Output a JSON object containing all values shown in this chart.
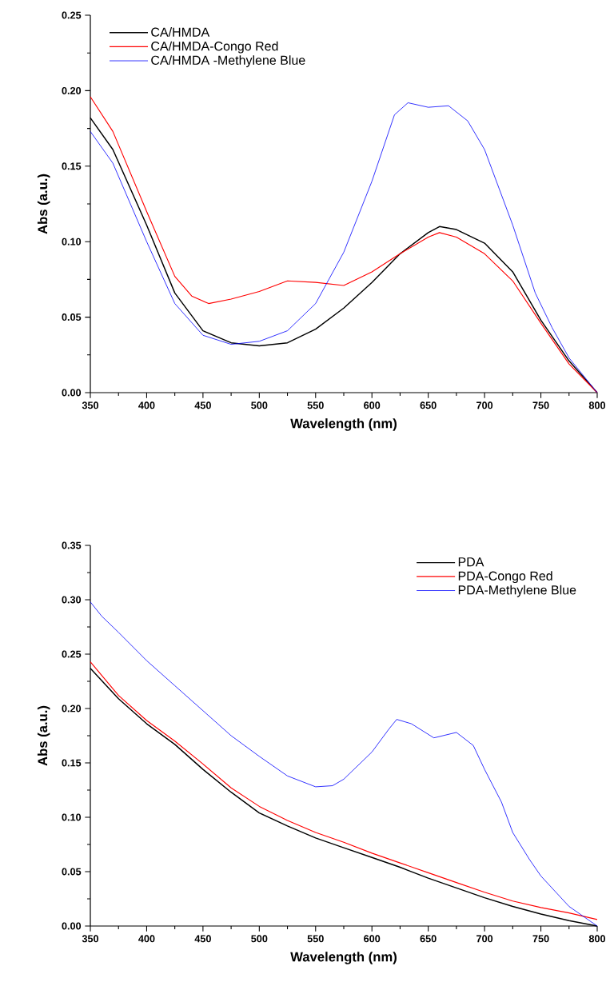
{
  "chart_data": [
    {
      "type": "line",
      "xlabel": "Wavelength (nm)",
      "ylabel": "Abs (a.u.)",
      "legend": "top left",
      "xlim": [
        350,
        800
      ],
      "ylim": [
        0,
        0.25
      ],
      "xticks": [
        350,
        400,
        450,
        500,
        550,
        600,
        650,
        700,
        750,
        800
      ],
      "yticks": [
        {
          "value": 0,
          "label": "0.00"
        },
        {
          "value": 0.05,
          "label": "0.05"
        },
        {
          "value": 0.1,
          "label": "0.10"
        },
        {
          "value": 0.15,
          "label": "0.15"
        },
        {
          "value": 0.2,
          "label": "0.20"
        },
        {
          "value": 0.25,
          "label": "0.25"
        }
      ],
      "series": [
        {
          "name": "CA/HMDA",
          "color": "#000000",
          "x": [
            350,
            370,
            400,
            425,
            450,
            475,
            500,
            525,
            550,
            575,
            600,
            625,
            650,
            660,
            675,
            700,
            725,
            750,
            775,
            800
          ],
          "values": [
            0.182,
            0.161,
            0.111,
            0.066,
            0.041,
            0.033,
            0.031,
            0.033,
            0.042,
            0.056,
            0.073,
            0.092,
            0.106,
            0.11,
            0.108,
            0.099,
            0.08,
            0.048,
            0.021,
            0
          ]
        },
        {
          "name": "CA/HMDA-Congo Red",
          "color": "#ff0000",
          "x": [
            350,
            370,
            400,
            425,
            440,
            455,
            475,
            500,
            525,
            550,
            575,
            600,
            625,
            650,
            660,
            675,
            700,
            725,
            750,
            775,
            800
          ],
          "values": [
            0.196,
            0.173,
            0.12,
            0.077,
            0.064,
            0.059,
            0.062,
            0.067,
            0.074,
            0.073,
            0.071,
            0.08,
            0.092,
            0.103,
            0.106,
            0.103,
            0.092,
            0.074,
            0.046,
            0.019,
            0
          ]
        },
        {
          "name": "CA/HMDA -Methylene Blue",
          "color": "#0000ff",
          "x": [
            350,
            370,
            400,
            425,
            450,
            475,
            500,
            525,
            550,
            575,
            600,
            620,
            632,
            650,
            668,
            685,
            700,
            725,
            745,
            760,
            775,
            800
          ],
          "values": [
            0.173,
            0.152,
            0.1,
            0.059,
            0.038,
            0.032,
            0.034,
            0.041,
            0.059,
            0.093,
            0.14,
            0.184,
            0.192,
            0.189,
            0.19,
            0.18,
            0.161,
            0.111,
            0.066,
            0.043,
            0.023,
            0
          ]
        }
      ]
    },
    {
      "type": "line",
      "xlabel": "Wavelength (nm)",
      "ylabel": "Abs (a.u.)",
      "legend": "top right",
      "xlim": [
        350,
        800
      ],
      "ylim": [
        0,
        0.35
      ],
      "xticks": [
        350,
        400,
        450,
        500,
        550,
        600,
        650,
        700,
        750,
        800
      ],
      "yticks": [
        {
          "value": 0,
          "label": "0.00"
        },
        {
          "value": 0.05,
          "label": "0.05"
        },
        {
          "value": 0.1,
          "label": "0.10"
        },
        {
          "value": 0.15,
          "label": "0.15"
        },
        {
          "value": 0.2,
          "label": "0.20"
        },
        {
          "value": 0.25,
          "label": "0.25"
        },
        {
          "value": 0.3,
          "label": "0.30"
        },
        {
          "value": 0.35,
          "label": "0.35"
        }
      ],
      "series": [
        {
          "name": "PDA",
          "color": "#000000",
          "x": [
            350,
            375,
            400,
            425,
            450,
            475,
            500,
            525,
            550,
            575,
            600,
            625,
            650,
            675,
            700,
            725,
            750,
            775,
            800
          ],
          "values": [
            0.237,
            0.209,
            0.186,
            0.167,
            0.144,
            0.123,
            0.104,
            0.092,
            0.081,
            0.072,
            0.063,
            0.054,
            0.044,
            0.035,
            0.026,
            0.018,
            0.011,
            0.005,
            0
          ]
        },
        {
          "name": "PDA-Congo Red",
          "color": "#ff0000",
          "x": [
            350,
            375,
            400,
            425,
            450,
            475,
            500,
            525,
            550,
            575,
            600,
            625,
            650,
            675,
            700,
            725,
            750,
            775,
            800
          ],
          "values": [
            0.243,
            0.212,
            0.189,
            0.17,
            0.149,
            0.127,
            0.11,
            0.097,
            0.086,
            0.077,
            0.067,
            0.058,
            0.049,
            0.04,
            0.031,
            0.023,
            0.017,
            0.012,
            0.006
          ]
        },
        {
          "name": "PDA-Methylene Blue",
          "color": "#0000ff",
          "x": [
            350,
            360,
            375,
            400,
            425,
            450,
            475,
            500,
            525,
            550,
            565,
            575,
            600,
            615,
            622,
            635,
            655,
            667,
            675,
            690,
            700,
            715,
            725,
            740,
            750,
            775,
            800
          ],
          "values": [
            0.298,
            0.285,
            0.27,
            0.244,
            0.221,
            0.198,
            0.175,
            0.156,
            0.138,
            0.128,
            0.129,
            0.135,
            0.16,
            0.181,
            0.19,
            0.186,
            0.173,
            0.176,
            0.178,
            0.166,
            0.144,
            0.114,
            0.086,
            0.061,
            0.046,
            0.018,
            0
          ]
        }
      ]
    }
  ]
}
